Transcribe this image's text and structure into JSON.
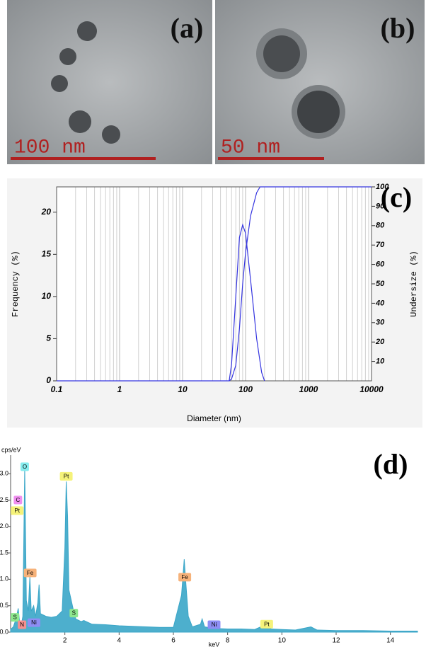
{
  "images": [
    {
      "label": "(a)",
      "scale_bar": "100 nm"
    },
    {
      "label": "(b)",
      "scale_bar": "50 nm"
    }
  ],
  "chart_data": [
    {
      "type": "line",
      "panel_label": "(c)",
      "x_label": "Diameter (nm)",
      "y_label": "Frequency (%)",
      "y2_label": "Undersize (%)",
      "xscale": "log",
      "xlim": [
        0.1,
        10000
      ],
      "xticks": [
        0.1,
        1,
        10,
        100,
        1000,
        10000
      ],
      "ylim": [
        0,
        23
      ],
      "yticks": [
        0,
        5,
        10,
        15,
        20
      ],
      "y2lim": [
        0,
        100
      ],
      "y2ticks": [
        10,
        20,
        30,
        40,
        50,
        60,
        70,
        80,
        90,
        100
      ],
      "grid": true,
      "series": [
        {
          "color": "#3535e0",
          "x": [
            0.1,
            0.3,
            55,
            60,
            70,
            80,
            90,
            100,
            120,
            150,
            180,
            200
          ],
          "values": [
            0,
            0,
            0,
            2,
            10,
            17,
            18.5,
            17.5,
            12,
            5,
            1,
            0
          ]
        },
        {
          "color": "#3535e0",
          "axis": "y2",
          "x": [
            55,
            60,
            70,
            80,
            90,
            100,
            120,
            150,
            170,
            10000
          ],
          "values": [
            0,
            1,
            8,
            27,
            50,
            66,
            85,
            97,
            100,
            100
          ]
        }
      ]
    },
    {
      "type": "area",
      "panel_label": "(d)",
      "x_label": "keV",
      "y_label": "cps/eV",
      "xlim": [
        0,
        15
      ],
      "xticks": [
        2,
        4,
        6,
        8,
        10,
        12,
        14
      ],
      "ylim": [
        0,
        3.35
      ],
      "yticks": [
        {
          "value": 0,
          "label": "0.0"
        },
        {
          "value": 0.5,
          "label": "0.5"
        },
        {
          "value": 1,
          "label": "1.0"
        },
        {
          "value": 1.5,
          "label": "1.5"
        },
        {
          "value": 2,
          "label": "2.0"
        },
        {
          "value": 2.5,
          "label": "2.5"
        },
        {
          "value": 3,
          "label": "3.0"
        }
      ],
      "series": [
        {
          "color": "#3aa6c8",
          "x": [
            0,
            0.1,
            0.2,
            0.28,
            0.33,
            0.4,
            0.45,
            0.52,
            0.58,
            0.65,
            0.71,
            0.76,
            0.85,
            0.92,
            1.0,
            1.05,
            1.1,
            1.3,
            1.5,
            1.7,
            1.9,
            2.0,
            2.05,
            2.1,
            2.15,
            2.3,
            2.4,
            2.6,
            2.7,
            3.0,
            3.5,
            4.0,
            4.5,
            5.0,
            5.5,
            6.0,
            6.3,
            6.4,
            6.45,
            6.55,
            6.7,
            7.0,
            7.06,
            7.15,
            7.5,
            8.0,
            8.5,
            9.0,
            9.44,
            9.6,
            10.0,
            10.5,
            11.07,
            11.3,
            12,
            13,
            14,
            15
          ],
          "values": [
            0.05,
            0.1,
            0.25,
            0.45,
            0.2,
            0.15,
            0.3,
            3.1,
            0.6,
            0.4,
            1.05,
            0.4,
            0.5,
            0.3,
            0.55,
            0.9,
            0.35,
            0.3,
            0.28,
            0.3,
            0.4,
            1.6,
            2.85,
            2.2,
            0.8,
            0.45,
            0.25,
            0.2,
            0.22,
            0.15,
            0.14,
            0.12,
            0.11,
            0.1,
            0.09,
            0.09,
            0.7,
            1.38,
            1.0,
            0.3,
            0.1,
            0.15,
            0.25,
            0.1,
            0.07,
            0.06,
            0.06,
            0.05,
            0.15,
            0.06,
            0.05,
            0.04,
            0.1,
            0.04,
            0.03,
            0.03,
            0.02,
            0.02
          ]
        }
      ],
      "annotations": [
        {
          "text": "O",
          "x": 0.52,
          "y": 3.13,
          "color": "#86ecee"
        },
        {
          "text": "C",
          "x": 0.27,
          "y": 2.5,
          "color": "#f08ef0"
        },
        {
          "text": "Pt",
          "x": 0.24,
          "y": 2.3,
          "color": "#f5f27a"
        },
        {
          "text": "Fe",
          "x": 0.72,
          "y": 1.12,
          "color": "#f6b27a"
        },
        {
          "text": "S",
          "x": 0.16,
          "y": 0.28,
          "color": "#8ee88e"
        },
        {
          "text": "N",
          "x": 0.42,
          "y": 0.14,
          "color": "#f59090"
        },
        {
          "text": "Ni",
          "x": 0.86,
          "y": 0.18,
          "color": "#8e8ef5"
        },
        {
          "text": "Pt",
          "x": 2.05,
          "y": 2.95,
          "color": "#f5f27a"
        },
        {
          "text": "S",
          "x": 2.33,
          "y": 0.36,
          "color": "#8ee88e"
        },
        {
          "text": "Fe",
          "x": 6.42,
          "y": 1.04,
          "color": "#f6b27a"
        },
        {
          "text": "Ni",
          "x": 7.5,
          "y": 0.14,
          "color": "#8e8ef5"
        },
        {
          "text": "Pt",
          "x": 9.44,
          "y": 0.15,
          "color": "#f5f27a"
        }
      ]
    }
  ]
}
